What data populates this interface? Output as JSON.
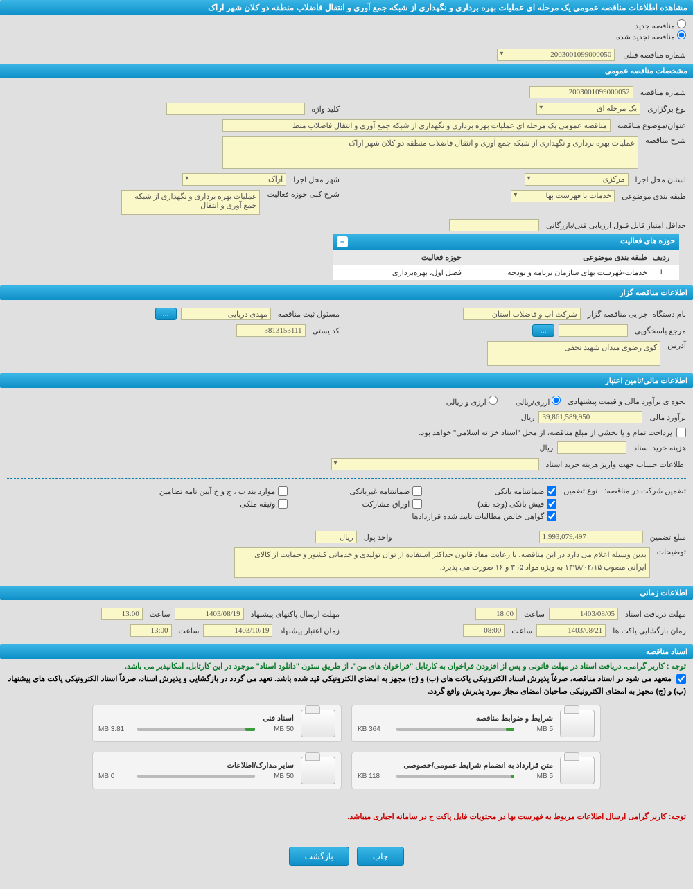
{
  "page_title": "مشاهده اطلاعات مناقصه عمومی یک مرحله ای عملیات بهره برداری و نگهداری از شبکه جمع آوری و انتقال فاضلاب منطقه دو کلان شهر اراک",
  "radio": {
    "opt1": "مناقصه جدید",
    "opt2": "مناقصه تجدید شده"
  },
  "prev_number_label": "شماره مناقصه قبلی",
  "prev_number_value": "2003001099000050",
  "sections": {
    "general": "مشخصات مناقصه عمومی",
    "organizer": "اطلاعات مناقصه گزار",
    "financial": "اطلاعات مالی/تامین اعتبار",
    "timing": "اطلاعات زمانی",
    "docs": "اسناد مناقصه"
  },
  "general": {
    "tender_no_lbl": "شماره مناقصه",
    "tender_no": "2003001099000052",
    "type_lbl": "نوع برگزاری",
    "type_val": "یک مرحله ای",
    "keyword_lbl": "کلید واژه",
    "keyword_val": "",
    "subject_lbl": "عنوان/موضوع مناقصه",
    "subject_val": "مناقصه عمومی یک مرحله ای عملیات بهره برداری و نگهداری از شبکه جمع آوری و انتقال فاضلاب منط",
    "desc_lbl": "شرح مناقصه",
    "desc_val": "عملیات بهره برداری و نگهداری از شبکه جمع آوری و انتقال فاضلاب منطقه دو کلان شهر اراک",
    "province_lbl": "استان محل اجرا",
    "province_val": "مرکزی",
    "city_lbl": "شهر محل اجرا",
    "city_val": "اراک",
    "category_lbl": "طبقه بندی موضوعی",
    "category_val": "خدمات با فهرست بها",
    "field_lbl": "شرح کلی حوزه فعالیت",
    "field_val": "عملیات بهره برداری و نگهداری از شبکه جمع آوری و انتقال",
    "min_score_lbl": "حداقل امتیاز قابل قبول ارزیابی فنی/بازرگانی",
    "min_score_val": ""
  },
  "activity": {
    "header": "حوزه های فعالیت",
    "col_idx": "ردیف",
    "col_cat": "طبقه بندی موضوعی",
    "col_fld": "حوزه فعالیت",
    "row": {
      "idx": "1",
      "cat": "خدمات-فهرست بهای سازمان برنامه و بودجه",
      "fld": "فصل اول، بهره‌برداری"
    }
  },
  "organizer": {
    "org_lbl": "نام دستگاه اجرایی مناقصه گزار",
    "org_val": "شرکت آب و فاضلاب استان",
    "resp_lbl": "مسئول ثبت مناقصه",
    "resp_val": "مهدی دریایی",
    "acc_lbl": "مرجع پاسخگویی",
    "acc_btn": "...",
    "post_lbl": "کد پستی",
    "post_val": "3813153111",
    "addr_lbl": "آدرس",
    "addr_val": "کوی رضوی میدان شهید نجفی"
  },
  "financial": {
    "method_lbl": "نحوه ی برآورد مالی و قیمت پیشنهادی",
    "method_opt1": "ارزی/ریالی",
    "method_opt2": "ارزی و ریالی",
    "estimate_lbl": "برآورد مالی",
    "estimate_val": "39,861,589,950",
    "unit_rial": "ریال",
    "pay_note": "پرداخت تمام و یا بخشی از مبلغ مناقصه، از محل \"اسناد خزانه اسلامی\" خواهد بود.",
    "doc_cost_lbl": "هزینه خرید اسناد",
    "doc_cost_val": "",
    "acct_info_lbl": "اطلاعات حساب جهت واریز هزینه خرید اسناد",
    "acct_info_val": ""
  },
  "guarantee": {
    "title": "تضمین شرکت در مناقصه:",
    "type_lbl": "نوع تضمین",
    "c1": "ضمانتنامه بانکی",
    "c2": "ضمانتنامه غیربانکی",
    "c3": "موارد بند ب ، ج و خ آیین نامه تضامین",
    "c4": "فیش بانکی (وجه نقد)",
    "c5": "اوراق مشارکت",
    "c6": "وثیقه ملکی",
    "c7": "گواهی خالص مطالبات تایید شده قراردادها",
    "amount_lbl": "مبلغ تضمین",
    "amount_val": "1,993,079,497",
    "unit_lbl": "واحد پول",
    "unit_val": "ریال",
    "remarks_lbl": "توضیحات",
    "remarks_val": "بدین وسیله اعلام می دارد در این مناقصه، با رعایت مفاد قانون حداکثر استفاده از توان تولیدی و خدماتی کشور و حمایت از کالای ایرانی مصوب ۱۳۹۸/۰۲/۱۵ به ویژه مواد ۵، ۳ و ۱۶ صورت می پذیرد."
  },
  "timing": {
    "receive_lbl": "مهلت دریافت اسناد",
    "receive_date": "1403/08/05",
    "receive_time_lbl": "ساعت",
    "receive_time": "18:00",
    "send_lbl": "مهلت ارسال پاکتهای پیشنهاد",
    "send_date": "1403/08/19",
    "send_time_lbl": "ساعت",
    "send_time": "13:00",
    "open_lbl": "زمان بازگشایی پاکت ها",
    "open_date": "1403/08/21",
    "open_time_lbl": "ساعت",
    "open_time": "08:00",
    "valid_lbl": "زمان اعتبار پیشنهاد",
    "valid_date": "1403/10/19",
    "valid_time_lbl": "ساعت",
    "valid_time": "13:00"
  },
  "docs": {
    "note1": "توجه : کاربر گرامی، دریافت اسناد در مهلت قانونی و پس از افزودن فراخوان به کارتابل \"فراخوان های من\"، از طریق ستون \"دانلود اسناد\" موجود در این کارتابل، امکانپذیر می باشد.",
    "note2": "متعهد می شود در اسناد مناقصه، صرفاً پذیرش اسناد الکترونیکی پاکت های (ب) و (ج) مجهز به امضای الکترونیکی قید شده باشد. تعهد می گردد در بازگشایی و پذیرش اسناد، صرفاً اسناد الکترونیکی پاکت های پیشنهاد (ب) و (ج) مجهز به امضای الکترونیکی صاحبان امضای مجاز مورد پذیرش واقع گردد.",
    "files": [
      {
        "title": "شرایط و ضوابط مناقصه",
        "size": "364 KB",
        "limit": "5 MB",
        "pct": 7
      },
      {
        "title": "اسناد فنی",
        "size": "3.81 MB",
        "limit": "50 MB",
        "pct": 8
      },
      {
        "title": "متن قرارداد به انضمام شرایط عمومی/خصوصی",
        "size": "118 KB",
        "limit": "5 MB",
        "pct": 3
      },
      {
        "title": "سایر مدارک/اطلاعات",
        "size": "0 MB",
        "limit": "50 MB",
        "pct": 0
      }
    ],
    "note_red": "توجه: کاربر گرامی ارسال اطلاعات مربوط به فهرست بها در محتویات فایل پاکت ج در سامانه اجباری میباشد."
  },
  "footer": {
    "print": "چاپ",
    "back": "بازگشت"
  }
}
